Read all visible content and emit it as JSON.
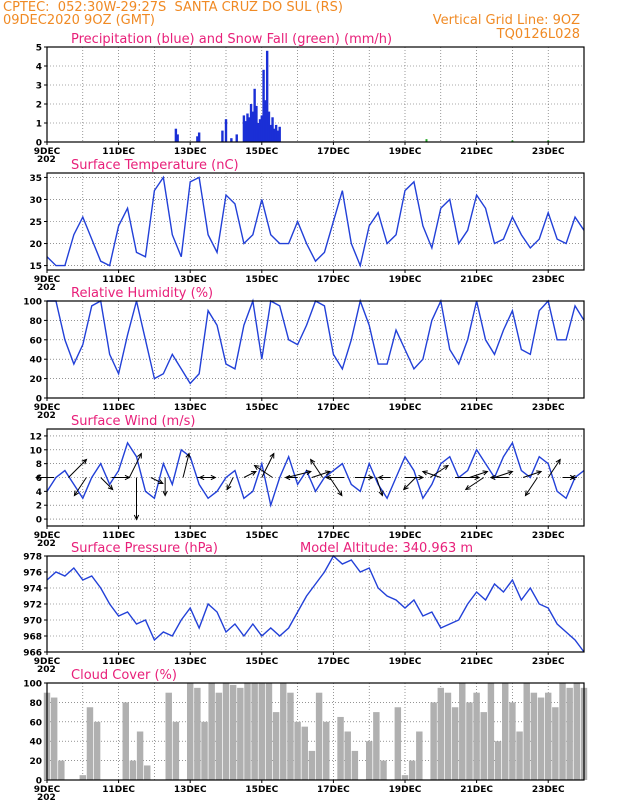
{
  "header": {
    "line1_left": "CPTEC:  052:30W-29:27S  SANTA CRUZ DO SUL (RS)",
    "line2_left": "09DEC2020 9OZ (GMT)",
    "line2_right": "Vertical Grid Line: 9OZ",
    "line3_right": "TQ0126L028"
  },
  "x_axis": {
    "start_label": "9DEC",
    "end_day": 24,
    "tick_labels": [
      "9DEC",
      "11DEC",
      "13DEC",
      "15DEC",
      "17DEC",
      "19DEC",
      "21DEC",
      "23DEC"
    ],
    "tick_days": [
      9,
      11,
      13,
      15,
      17,
      19,
      21,
      23
    ],
    "start_day": 9,
    "year_fragment": "202"
  },
  "chart_data": [
    {
      "id": "precip",
      "type": "bar",
      "title": "Precipitation (blue) and Snow Fall (green) (mm/h)",
      "ylim": [
        0,
        5
      ],
      "yticks": [
        0,
        1,
        2,
        3,
        4,
        5
      ],
      "colors": {
        "rain": "#1a2fd6",
        "snow": "#22aa22"
      },
      "x": [
        12.6,
        12.65,
        13.2,
        13.25,
        13.9,
        14.0,
        14.15,
        14.3,
        14.5,
        14.55,
        14.6,
        14.65,
        14.7,
        14.75,
        14.8,
        14.85,
        14.9,
        14.95,
        15.0,
        15.05,
        15.1,
        15.15,
        15.2,
        15.25,
        15.3,
        15.35,
        15.4,
        15.45,
        15.5
      ],
      "values": [
        0.7,
        0.4,
        0.3,
        0.5,
        0.6,
        1.2,
        0.2,
        0.4,
        1.4,
        1.1,
        1.5,
        1.3,
        2.0,
        1.6,
        2.8,
        1.9,
        1.0,
        1.2,
        1.4,
        3.8,
        2.2,
        4.8,
        1.6,
        0.9,
        1.3,
        0.7,
        0.9,
        0.6,
        0.8
      ],
      "snow_x": [
        19.6,
        22.0,
        23.0
      ],
      "snow_values": [
        0.15,
        0.08,
        0.08
      ]
    },
    {
      "id": "temp",
      "type": "line",
      "title": "Surface Temperature (nC)",
      "ylim": [
        14,
        36
      ],
      "yticks": [
        15,
        20,
        25,
        30,
        35
      ],
      "color": "#2240d8",
      "x": [
        9.0,
        9.25,
        9.5,
        9.75,
        10.0,
        10.25,
        10.5,
        10.75,
        11.0,
        11.25,
        11.5,
        11.75,
        12.0,
        12.25,
        12.5,
        12.75,
        13.0,
        13.25,
        13.5,
        13.75,
        14.0,
        14.25,
        14.5,
        14.75,
        15.0,
        15.25,
        15.5,
        15.75,
        16.0,
        16.25,
        16.5,
        16.75,
        17.0,
        17.25,
        17.5,
        17.75,
        18.0,
        18.25,
        18.5,
        18.75,
        19.0,
        19.25,
        19.5,
        19.75,
        20.0,
        20.25,
        20.5,
        20.75,
        21.0,
        21.25,
        21.5,
        21.75,
        22.0,
        22.25,
        22.5,
        22.75,
        23.0,
        23.25,
        23.5,
        23.75,
        24.0
      ],
      "values": [
        17,
        15,
        15,
        22,
        26,
        21,
        16,
        15,
        24,
        28,
        18,
        17,
        32,
        35,
        22,
        17,
        34,
        35,
        22,
        18,
        31,
        29,
        20,
        22,
        30,
        22,
        20,
        20,
        25,
        20,
        16,
        18,
        25,
        32,
        20,
        15,
        24,
        27,
        20,
        22,
        32,
        34,
        24,
        19,
        28,
        30,
        20,
        23,
        31,
        28,
        20,
        21,
        26,
        22,
        19,
        21,
        27,
        21,
        20,
        26,
        23
      ]
    },
    {
      "id": "rh",
      "type": "line",
      "title": "Relative Humidity (%)",
      "ylim": [
        0,
        100
      ],
      "yticks": [
        0,
        20,
        40,
        60,
        80,
        100
      ],
      "color": "#2240d8",
      "x": [
        9.0,
        9.25,
        9.5,
        9.75,
        10.0,
        10.25,
        10.5,
        10.75,
        11.0,
        11.25,
        11.5,
        11.75,
        12.0,
        12.25,
        12.5,
        12.75,
        13.0,
        13.25,
        13.5,
        13.75,
        14.0,
        14.25,
        14.5,
        14.75,
        15.0,
        15.25,
        15.5,
        15.75,
        16.0,
        16.25,
        16.5,
        16.75,
        17.0,
        17.25,
        17.5,
        17.75,
        18.0,
        18.25,
        18.5,
        18.75,
        19.0,
        19.25,
        19.5,
        19.75,
        20.0,
        20.25,
        20.5,
        20.75,
        21.0,
        21.25,
        21.5,
        21.75,
        22.0,
        22.25,
        22.5,
        22.75,
        23.0,
        23.25,
        23.5,
        23.75,
        24.0
      ],
      "values": [
        100,
        100,
        60,
        35,
        55,
        95,
        100,
        45,
        25,
        65,
        100,
        60,
        20,
        25,
        45,
        30,
        15,
        25,
        90,
        75,
        35,
        30,
        75,
        100,
        40,
        100,
        95,
        60,
        55,
        75,
        100,
        95,
        45,
        30,
        60,
        100,
        75,
        35,
        35,
        70,
        50,
        30,
        40,
        80,
        100,
        50,
        35,
        60,
        100,
        60,
        45,
        70,
        90,
        50,
        45,
        90,
        100,
        60,
        60,
        95,
        80
      ]
    },
    {
      "id": "wind",
      "type": "line",
      "title": "Surface Wind (m/s)",
      "ylim": [
        -1,
        13
      ],
      "yticks": [
        0,
        2,
        4,
        6,
        8,
        10,
        12
      ],
      "color": "#2240d8",
      "x": [
        9.0,
        9.25,
        9.5,
        9.75,
        10.0,
        10.25,
        10.5,
        10.75,
        11.0,
        11.25,
        11.5,
        11.75,
        12.0,
        12.25,
        12.5,
        12.75,
        13.0,
        13.25,
        13.5,
        13.75,
        14.0,
        14.25,
        14.5,
        14.75,
        15.0,
        15.25,
        15.5,
        15.75,
        16.0,
        16.25,
        16.5,
        16.75,
        17.0,
        17.25,
        17.5,
        17.75,
        18.0,
        18.25,
        18.5,
        18.75,
        19.0,
        19.25,
        19.5,
        19.75,
        20.0,
        20.25,
        20.5,
        20.75,
        21.0,
        21.25,
        21.5,
        21.75,
        22.0,
        22.25,
        22.5,
        22.75,
        23.0,
        23.25,
        23.5,
        23.75,
        24.0
      ],
      "values": [
        4,
        6,
        7,
        5,
        3,
        6,
        8,
        5,
        7,
        11,
        9,
        4,
        3,
        8,
        5,
        10,
        9,
        5,
        3,
        4,
        6,
        7,
        3,
        4,
        8,
        2,
        6,
        9,
        5,
        7,
        4,
        6,
        7,
        8,
        5,
        4,
        8,
        5,
        3,
        6,
        9,
        7,
        3,
        5,
        8,
        9,
        6,
        7,
        10,
        8,
        6,
        9,
        11,
        7,
        6,
        9,
        8,
        4,
        3,
        6,
        7
      ],
      "vectors": [
        [
          9.2,
          -3,
          0
        ],
        [
          9.6,
          3,
          3
        ],
        [
          10.1,
          -2,
          -3
        ],
        [
          10.5,
          2,
          -2
        ],
        [
          10.8,
          3,
          0
        ],
        [
          11.3,
          2,
          4
        ],
        [
          11.5,
          0,
          -7
        ],
        [
          11.9,
          2,
          -1
        ],
        [
          12.3,
          0,
          -3
        ],
        [
          12.8,
          1,
          4
        ],
        [
          13.2,
          3,
          0
        ],
        [
          13.6,
          -2,
          0
        ],
        [
          14.2,
          -1,
          -2
        ],
        [
          14.5,
          2,
          1
        ],
        [
          15.0,
          2,
          4
        ],
        [
          15.3,
          -3,
          2
        ],
        [
          15.7,
          4,
          1
        ],
        [
          16.0,
          -2,
          0
        ],
        [
          16.4,
          3,
          1
        ],
        [
          16.7,
          -2,
          3
        ],
        [
          16.9,
          2,
          -3
        ],
        [
          17.3,
          -3,
          0
        ],
        [
          17.6,
          3,
          0
        ],
        [
          18.2,
          1,
          -3
        ],
        [
          18.6,
          -2,
          0
        ],
        [
          19.0,
          3,
          0
        ],
        [
          19.3,
          -2,
          -2
        ],
        [
          19.7,
          3,
          2
        ],
        [
          20.0,
          -3,
          1
        ],
        [
          20.4,
          4,
          0
        ],
        [
          20.8,
          3,
          1
        ],
        [
          21.2,
          -3,
          -2
        ],
        [
          21.5,
          3,
          1
        ],
        [
          21.9,
          -3,
          0
        ],
        [
          22.3,
          3,
          1
        ],
        [
          22.7,
          -2,
          -3
        ],
        [
          23.0,
          2,
          3
        ],
        [
          23.4,
          2,
          0
        ],
        [
          23.8,
          -1,
          0
        ]
      ]
    },
    {
      "id": "pres",
      "type": "line",
      "title": "Surface Pressure (hPa)",
      "subtitle": "Model Altitude: 340.963 m",
      "ylim": [
        966,
        978
      ],
      "yticks": [
        966,
        968,
        970,
        972,
        974,
        976,
        978
      ],
      "color": "#2240d8",
      "x": [
        9.0,
        9.25,
        9.5,
        9.75,
        10.0,
        10.25,
        10.5,
        10.75,
        11.0,
        11.25,
        11.5,
        11.75,
        12.0,
        12.25,
        12.5,
        12.75,
        13.0,
        13.25,
        13.5,
        13.75,
        14.0,
        14.25,
        14.5,
        14.75,
        15.0,
        15.25,
        15.5,
        15.75,
        16.0,
        16.25,
        16.5,
        16.75,
        17.0,
        17.25,
        17.5,
        17.75,
        18.0,
        18.25,
        18.5,
        18.75,
        19.0,
        19.25,
        19.5,
        19.75,
        20.0,
        20.25,
        20.5,
        20.75,
        21.0,
        21.25,
        21.5,
        21.75,
        22.0,
        22.25,
        22.5,
        22.75,
        23.0,
        23.25,
        23.5,
        23.75,
        24.0
      ],
      "values": [
        975,
        976,
        975.5,
        976.5,
        975,
        975.5,
        974,
        972,
        970.5,
        971,
        969.5,
        970,
        967.5,
        968.5,
        968,
        970,
        971.5,
        969,
        972,
        971,
        968.5,
        969.5,
        968,
        969.5,
        968,
        969,
        968,
        969,
        971,
        973,
        974.5,
        976,
        978,
        977,
        977.5,
        976,
        976.5,
        974,
        973,
        972.5,
        971.5,
        972.5,
        970.5,
        971,
        969,
        969.5,
        970,
        972,
        973.5,
        972.5,
        974.5,
        973.5,
        975,
        972.5,
        974,
        972,
        971.5,
        969.5,
        968.5,
        967.5,
        966
      ]
    },
    {
      "id": "cloud",
      "type": "area",
      "title": "Cloud Cover (%)",
      "ylim": [
        0,
        100
      ],
      "yticks": [
        0,
        20,
        40,
        60,
        80,
        100
      ],
      "color": "#b0b0b0",
      "x": [
        9.0,
        9.2,
        9.4,
        9.6,
        9.8,
        10.0,
        10.2,
        10.4,
        10.6,
        10.8,
        11.0,
        11.2,
        11.4,
        11.6,
        11.8,
        12.0,
        12.2,
        12.4,
        12.6,
        12.8,
        13.0,
        13.2,
        13.4,
        13.6,
        13.8,
        14.0,
        14.2,
        14.4,
        14.6,
        14.8,
        15.0,
        15.2,
        15.4,
        15.6,
        15.8,
        16.0,
        16.2,
        16.4,
        16.6,
        16.8,
        17.0,
        17.2,
        17.4,
        17.6,
        17.8,
        18.0,
        18.2,
        18.4,
        18.6,
        18.8,
        19.0,
        19.2,
        19.4,
        19.6,
        19.8,
        20.0,
        20.2,
        20.4,
        20.6,
        20.8,
        21.0,
        21.2,
        21.4,
        21.6,
        21.8,
        22.0,
        22.2,
        22.4,
        22.6,
        22.8,
        23.0,
        23.2,
        23.4,
        23.6,
        23.8,
        24.0
      ],
      "values": [
        90,
        85,
        20,
        0,
        0,
        5,
        75,
        60,
        0,
        0,
        0,
        80,
        20,
        50,
        15,
        0,
        0,
        90,
        60,
        0,
        100,
        95,
        60,
        100,
        90,
        100,
        98,
        95,
        100,
        100,
        100,
        100,
        70,
        100,
        90,
        60,
        55,
        30,
        90,
        60,
        0,
        65,
        50,
        30,
        0,
        40,
        70,
        20,
        0,
        75,
        5,
        20,
        50,
        0,
        80,
        95,
        90,
        75,
        100,
        80,
        90,
        70,
        100,
        40,
        100,
        80,
        50,
        100,
        90,
        85,
        90,
        75,
        100,
        95,
        100,
        95
      ]
    }
  ]
}
